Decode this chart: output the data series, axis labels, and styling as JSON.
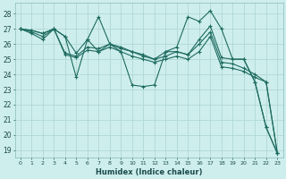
{
  "title": "",
  "xlabel": "Humidex (Indice chaleur)",
  "bg_color": "#ceeeed",
  "grid_color": "#b0d8d5",
  "line_color": "#1e6b60",
  "xlim": [
    -0.5,
    23.5
  ],
  "ylim": [
    18.5,
    28.7
  ],
  "xticks": [
    0,
    1,
    2,
    3,
    4,
    5,
    6,
    7,
    8,
    9,
    10,
    11,
    12,
    13,
    14,
    15,
    16,
    17,
    18,
    19,
    20,
    21,
    22,
    23
  ],
  "yticks": [
    19,
    20,
    21,
    22,
    23,
    24,
    25,
    26,
    27,
    28
  ],
  "series": [
    [
      27.0,
      26.9,
      26.7,
      27.0,
      26.5,
      23.8,
      26.3,
      27.8,
      26.0,
      25.5,
      23.3,
      23.2,
      23.3,
      25.5,
      25.8,
      27.8,
      27.5,
      28.2,
      27.0,
      25.0,
      25.0,
      23.5,
      20.5,
      18.8
    ],
    [
      27.0,
      26.9,
      26.7,
      27.0,
      26.5,
      25.4,
      26.3,
      25.5,
      26.0,
      25.8,
      25.5,
      25.3,
      25.0,
      25.5,
      25.5,
      25.3,
      26.3,
      27.2,
      25.1,
      25.0,
      25.0,
      23.5,
      20.5,
      18.8
    ],
    [
      27.0,
      26.7,
      26.3,
      27.0,
      25.4,
      25.2,
      25.8,
      25.7,
      26.0,
      25.7,
      25.5,
      25.2,
      25.0,
      25.2,
      25.5,
      25.3,
      26.0,
      26.8,
      24.8,
      24.7,
      24.4,
      24.0,
      23.5,
      18.8
    ],
    [
      27.0,
      26.8,
      26.5,
      27.0,
      25.3,
      25.1,
      25.6,
      25.5,
      25.8,
      25.5,
      25.2,
      25.0,
      24.8,
      25.0,
      25.2,
      25.0,
      25.5,
      26.5,
      24.5,
      24.4,
      24.2,
      23.8,
      23.5,
      18.8
    ]
  ]
}
